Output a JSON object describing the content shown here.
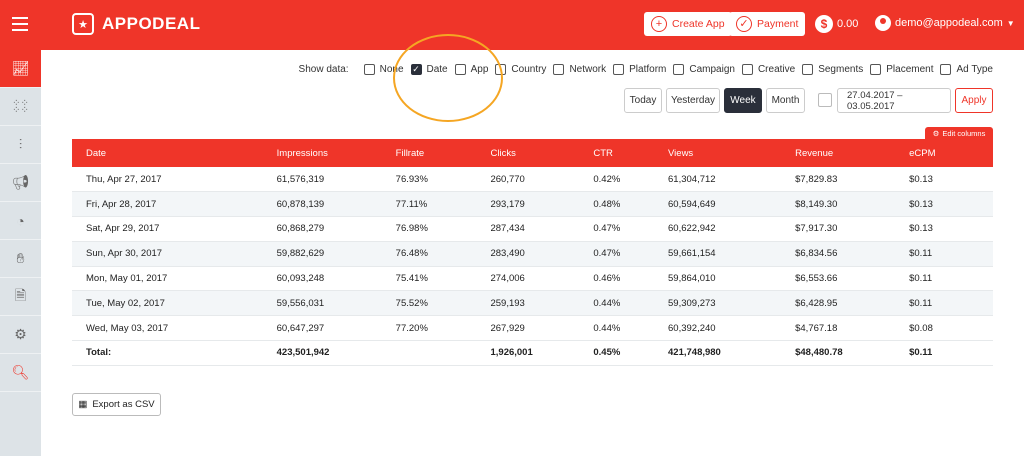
{
  "header": {
    "brand": "APPODEAL",
    "create_app": "Create App",
    "payment": "Payment",
    "balance": "0.00",
    "user": "demo@appodeal.com",
    "accent": "#ef3529"
  },
  "sidebar": {
    "items": [
      {
        "icon": "chart-line-icon",
        "active": true
      },
      {
        "icon": "apps-grid-icon"
      },
      {
        "icon": "sliders-icon"
      },
      {
        "icon": "megaphone-icon"
      },
      {
        "icon": "pie-chart-icon"
      },
      {
        "icon": "hand-coins-icon"
      },
      {
        "icon": "document-icon"
      },
      {
        "icon": "settings-window-icon"
      },
      {
        "icon": "search-analytics-icon"
      }
    ]
  },
  "filters": {
    "label": "Show data:",
    "options": [
      {
        "label": "None",
        "checked": false
      },
      {
        "label": "Date",
        "checked": true
      },
      {
        "label": "App",
        "checked": false
      },
      {
        "label": "Country",
        "checked": false
      },
      {
        "label": "Network",
        "checked": false
      },
      {
        "label": "Platform",
        "checked": false
      },
      {
        "label": "Campaign",
        "checked": false
      },
      {
        "label": "Creative",
        "checked": false
      },
      {
        "label": "Segments",
        "checked": false
      },
      {
        "label": "Placement",
        "checked": false
      },
      {
        "label": "Ad Type",
        "checked": false
      }
    ]
  },
  "period": {
    "today": "Today",
    "yesterday": "Yesterday",
    "week": "Week",
    "month": "Month",
    "selected": "Week",
    "range": "27.04.2017 – 03.05.2017",
    "apply": "Apply"
  },
  "table": {
    "edit_columns": "Edit columns",
    "columns": [
      "Date",
      "Impressions",
      "Fillrate",
      "Clicks",
      "CTR",
      "Views",
      "Revenue",
      "eCPM"
    ],
    "rows": [
      [
        "Thu, Apr 27, 2017",
        "61,576,319",
        "76.93%",
        "260,770",
        "0.42%",
        "61,304,712",
        "$7,829.83",
        "$0.13"
      ],
      [
        "Fri, Apr 28, 2017",
        "60,878,139",
        "77.11%",
        "293,179",
        "0.48%",
        "60,594,649",
        "$8,149.30",
        "$0.13"
      ],
      [
        "Sat, Apr 29, 2017",
        "60,868,279",
        "76.98%",
        "287,434",
        "0.47%",
        "60,622,942",
        "$7,917.30",
        "$0.13"
      ],
      [
        "Sun, Apr 30, 2017",
        "59,882,629",
        "76.48%",
        "283,490",
        "0.47%",
        "59,661,154",
        "$6,834.56",
        "$0.11"
      ],
      [
        "Mon, May 01, 2017",
        "60,093,248",
        "75.41%",
        "274,006",
        "0.46%",
        "59,864,010",
        "$6,553.66",
        "$0.11"
      ],
      [
        "Tue, May 02, 2017",
        "59,556,031",
        "75.52%",
        "259,193",
        "0.44%",
        "59,309,273",
        "$6,428.95",
        "$0.11"
      ],
      [
        "Wed, May 03, 2017",
        "60,647,297",
        "77.20%",
        "267,929",
        "0.44%",
        "60,392,240",
        "$4,767.18",
        "$0.08"
      ]
    ],
    "total": [
      "Total:",
      "423,501,942",
      "",
      "1,926,001",
      "0.45%",
      "421,748,980",
      "$48,480.78",
      "$0.11"
    ]
  },
  "export_label": "Export as CSV"
}
